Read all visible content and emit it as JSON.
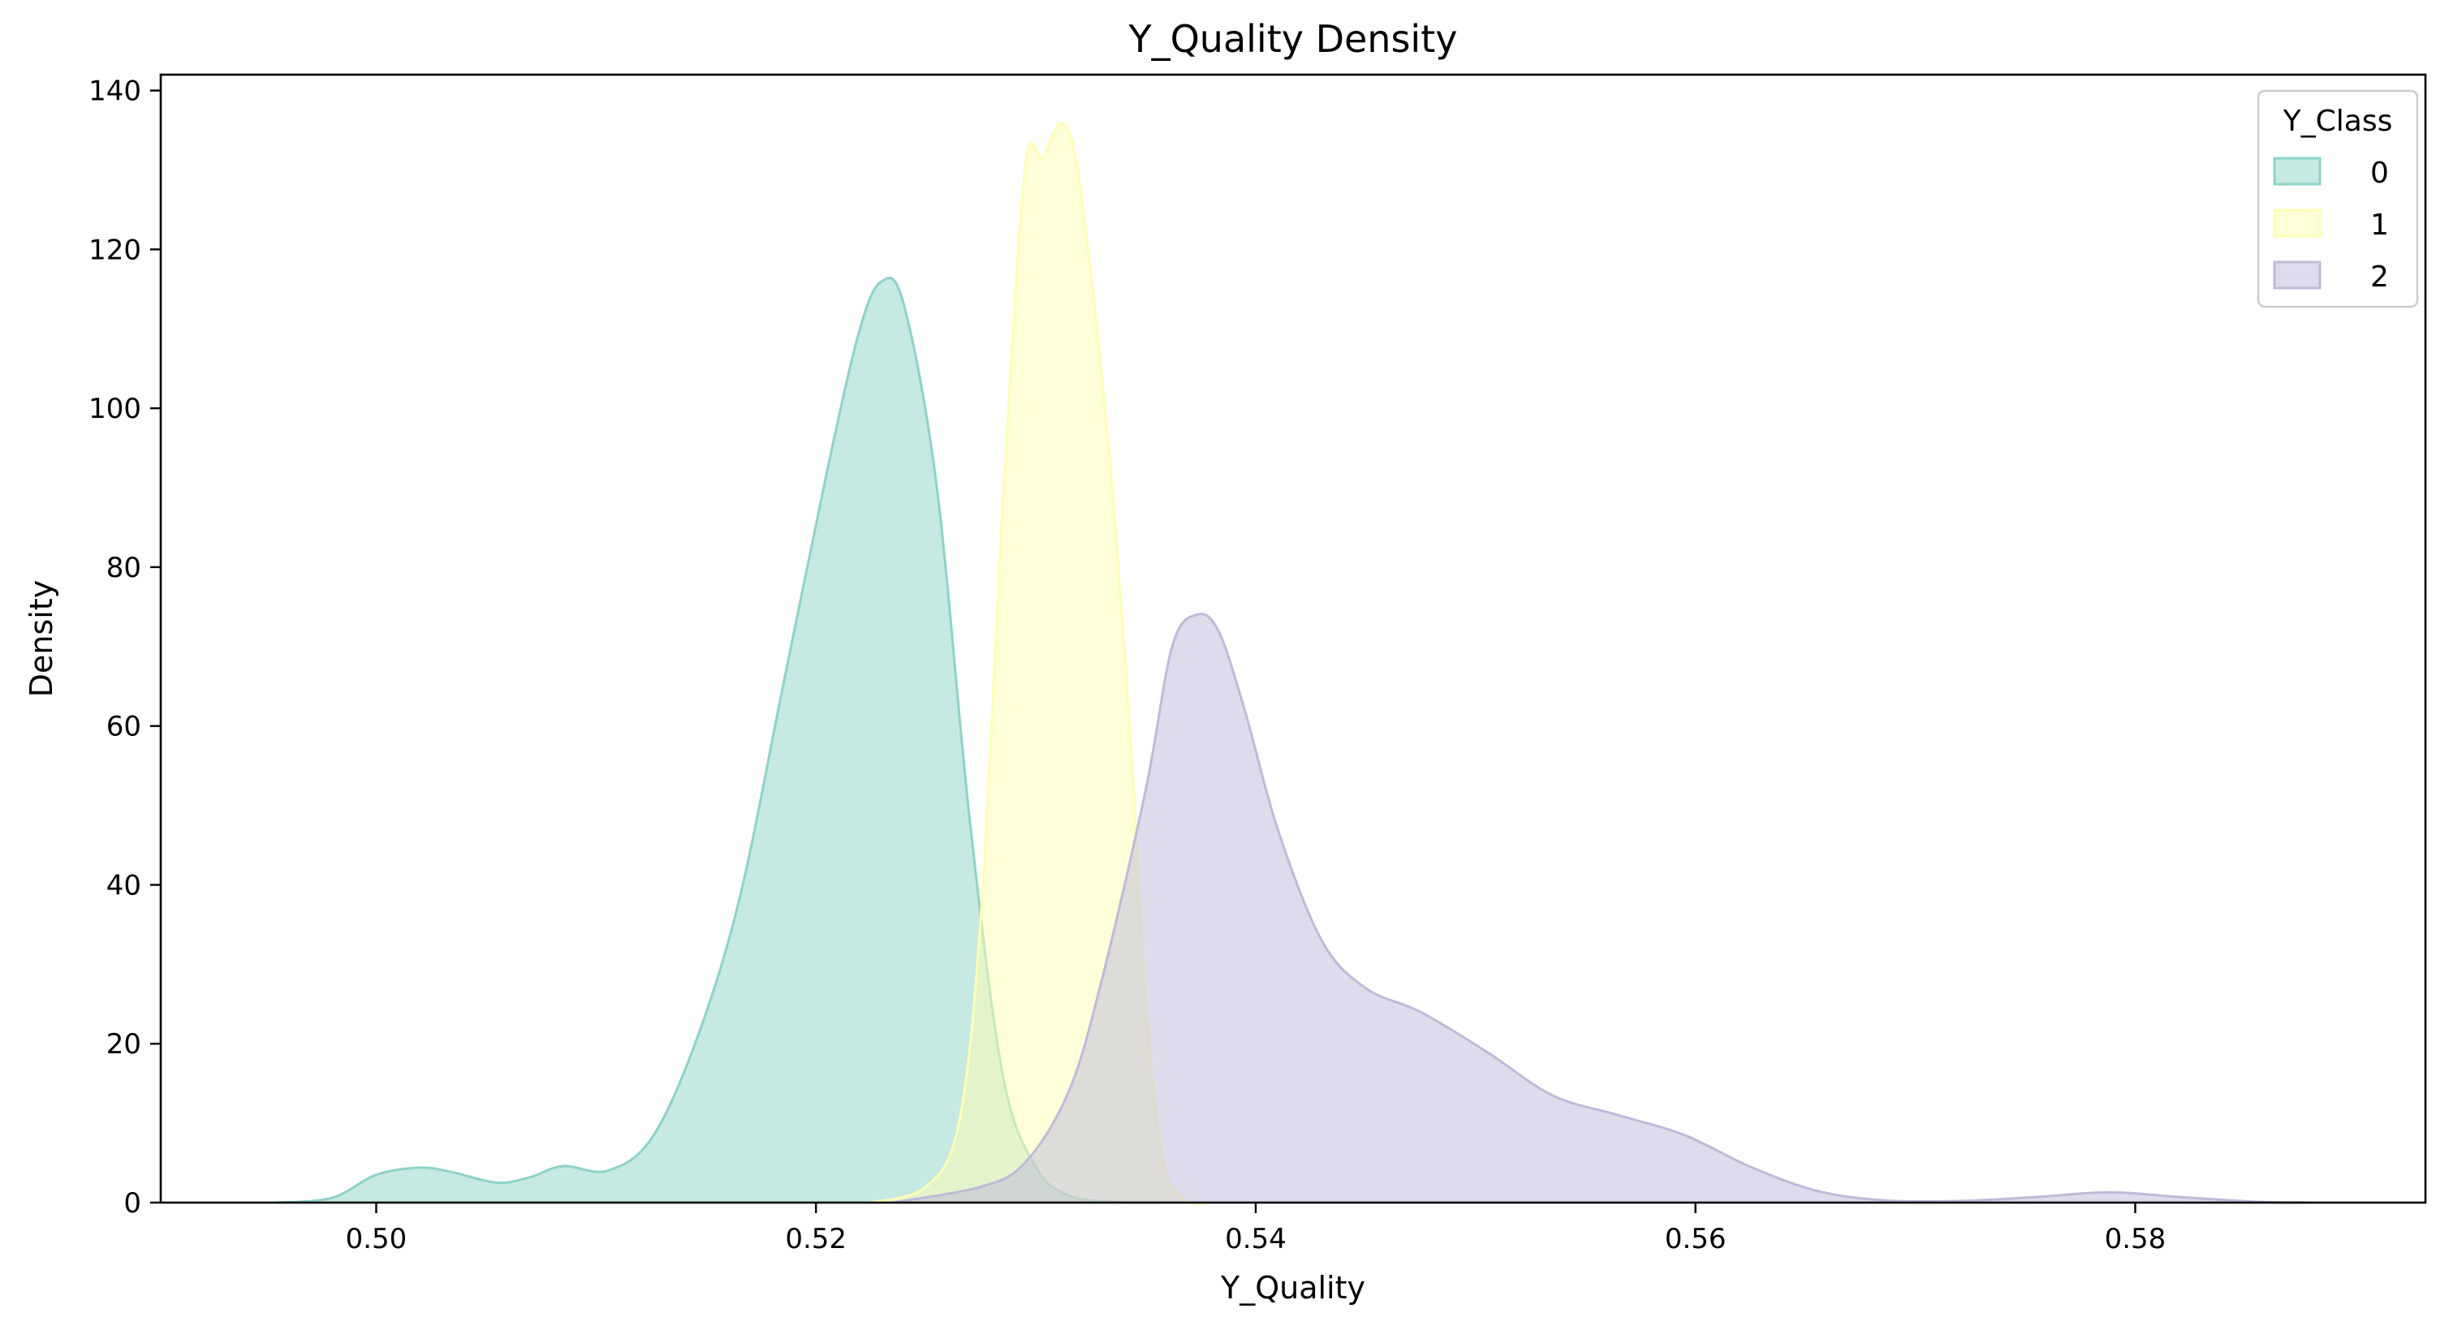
{
  "chart_data": {
    "type": "area",
    "title": "Y_Quality Density",
    "xlabel": "Y_Quality",
    "ylabel": "Density",
    "xlim": [
      0.4902,
      0.5932
    ],
    "ylim": [
      0,
      142
    ],
    "xticks": [
      0.5,
      0.52,
      0.54,
      0.56,
      0.58
    ],
    "xtick_labels": [
      "0.50",
      "0.52",
      "0.54",
      "0.56",
      "0.58"
    ],
    "yticks": [
      0,
      20,
      40,
      60,
      80,
      100,
      120,
      140
    ],
    "ytick_labels": [
      "0",
      "20",
      "40",
      "60",
      "80",
      "100",
      "120",
      "140"
    ],
    "grid": false,
    "legend": {
      "title": "Y_Class",
      "placement": "top-right"
    },
    "series": [
      {
        "name": "0",
        "fill": "#8dd3c7",
        "stroke": "#8dd3c7",
        "points": [
          [
            0.4955,
            0
          ],
          [
            0.498,
            0.6
          ],
          [
            0.5,
            3.5
          ],
          [
            0.502,
            4.4
          ],
          [
            0.5035,
            3.8
          ],
          [
            0.5055,
            2.5
          ],
          [
            0.507,
            3.2
          ],
          [
            0.5085,
            4.6
          ],
          [
            0.5105,
            4.0
          ],
          [
            0.5125,
            8
          ],
          [
            0.5145,
            20
          ],
          [
            0.5165,
            38
          ],
          [
            0.5185,
            65
          ],
          [
            0.5205,
            92
          ],
          [
            0.522,
            110
          ],
          [
            0.523,
            116
          ],
          [
            0.524,
            113
          ],
          [
            0.5255,
            90
          ],
          [
            0.527,
            48
          ],
          [
            0.5285,
            16
          ],
          [
            0.53,
            4.5
          ],
          [
            0.5315,
            0.9
          ],
          [
            0.5335,
            0.1
          ],
          [
            0.5355,
            0
          ]
        ]
      },
      {
        "name": "1",
        "fill": "#ffffb3",
        "stroke": "#ffffb3",
        "points": [
          [
            0.5225,
            0
          ],
          [
            0.525,
            2
          ],
          [
            0.5265,
            10
          ],
          [
            0.5275,
            36
          ],
          [
            0.5285,
            88
          ],
          [
            0.5295,
            130
          ],
          [
            0.5303,
            131.5
          ],
          [
            0.5312,
            135.8
          ],
          [
            0.532,
            128
          ],
          [
            0.5333,
            95
          ],
          [
            0.5343,
            58
          ],
          [
            0.535,
            25
          ],
          [
            0.5358,
            5
          ],
          [
            0.5368,
            0.3
          ],
          [
            0.5378,
            0
          ]
        ]
      },
      {
        "name": "2",
        "fill": "#bebada",
        "stroke": "#bebada",
        "points": [
          [
            0.5235,
            0
          ],
          [
            0.5275,
            2
          ],
          [
            0.5295,
            5
          ],
          [
            0.5315,
            14
          ],
          [
            0.533,
            28
          ],
          [
            0.535,
            52
          ],
          [
            0.5362,
            70
          ],
          [
            0.5373,
            74
          ],
          [
            0.5383,
            72
          ],
          [
            0.5395,
            62
          ],
          [
            0.541,
            47
          ],
          [
            0.543,
            33
          ],
          [
            0.545,
            27
          ],
          [
            0.5475,
            24
          ],
          [
            0.5505,
            19
          ],
          [
            0.5535,
            13.5
          ],
          [
            0.5565,
            11
          ],
          [
            0.5595,
            8.5
          ],
          [
            0.5625,
            4.5
          ],
          [
            0.5655,
            1.5
          ],
          [
            0.5685,
            0.3
          ],
          [
            0.572,
            0.2
          ],
          [
            0.5755,
            0.7
          ],
          [
            0.5788,
            1.3
          ],
          [
            0.582,
            0.7
          ],
          [
            0.5855,
            0.1
          ],
          [
            0.588,
            0
          ]
        ]
      }
    ]
  }
}
